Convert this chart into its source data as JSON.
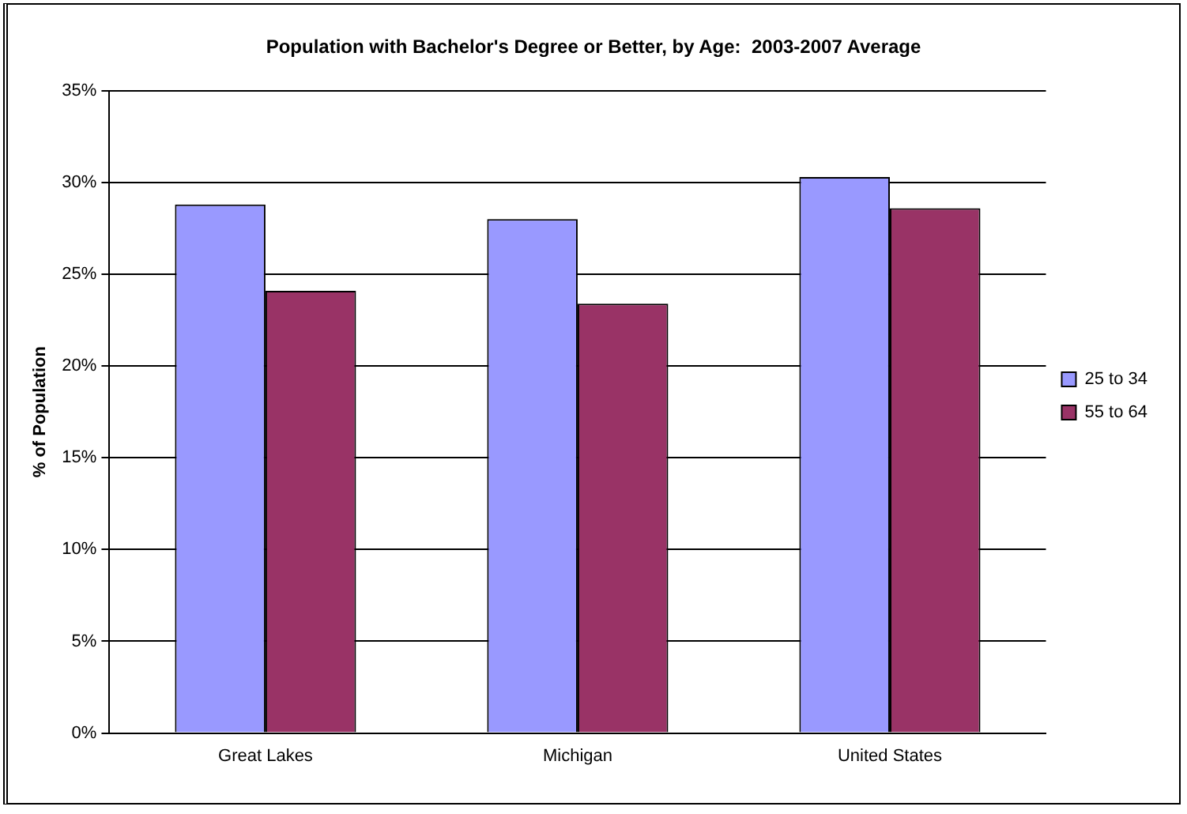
{
  "chart_data": {
    "type": "bar",
    "title": "Population with Bachelor's Degree or Better, by Age:  2003-2007 Average",
    "ylabel": "% of Population",
    "categories": [
      "Great Lakes",
      "Michigan",
      "United States"
    ],
    "series": [
      {
        "name": "25 to 34",
        "color": "#9999ff",
        "values": [
          28.8,
          28.0,
          30.3
        ]
      },
      {
        "name": "55 to 64",
        "color": "#993366",
        "values": [
          24.1,
          23.4,
          28.6
        ]
      }
    ],
    "ylim": [
      0,
      35
    ],
    "yticks": [
      {
        "value": 0,
        "label": "0%"
      },
      {
        "value": 5,
        "label": "5%"
      },
      {
        "value": 10,
        "label": "10%"
      },
      {
        "value": 15,
        "label": "15%"
      },
      {
        "value": 20,
        "label": "20%"
      },
      {
        "value": 25,
        "label": "25%"
      },
      {
        "value": 30,
        "label": "30%"
      },
      {
        "value": 35,
        "label": "35%"
      }
    ],
    "grid": "y",
    "legend": "right"
  }
}
